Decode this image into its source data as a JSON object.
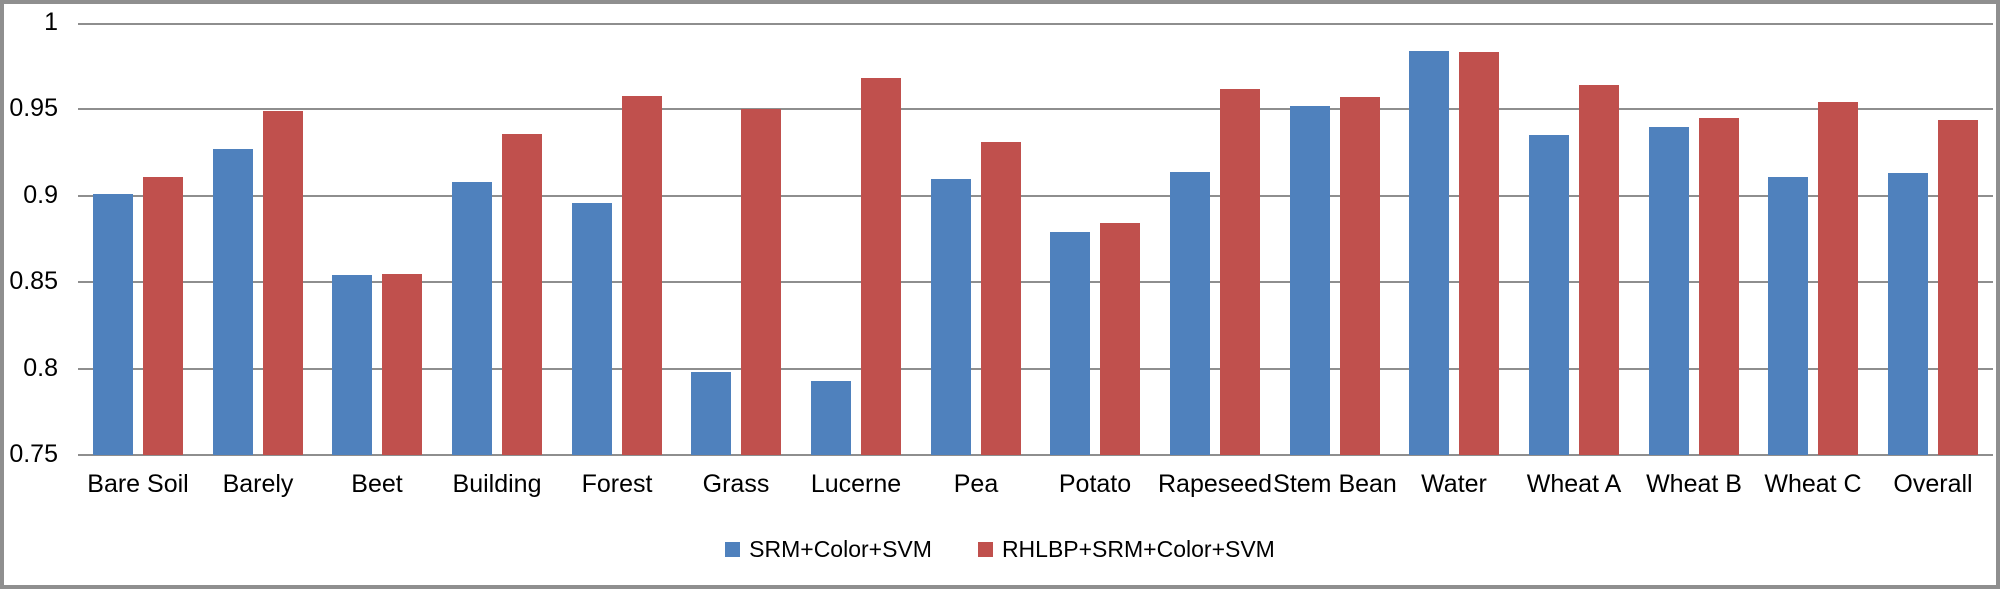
{
  "chart_data": {
    "type": "bar",
    "title": "",
    "xlabel": "",
    "ylabel": "",
    "categories": [
      "Bare Soil",
      "Barely",
      "Beet",
      "Building",
      "Forest",
      "Grass",
      "Lucerne",
      "Pea",
      "Potato",
      "Rapeseed",
      "Stem Bean",
      "Water",
      "Wheat A",
      "Wheat B",
      "Wheat C",
      "Overall"
    ],
    "series": [
      {
        "name": "SRM+Color+SVM",
        "color": "#4F81BD",
        "values": [
          0.901,
          0.927,
          0.854,
          0.908,
          0.896,
          0.798,
          0.793,
          0.91,
          0.879,
          0.914,
          0.952,
          0.984,
          0.935,
          0.94,
          0.911,
          0.913
        ]
      },
      {
        "name": "RHLBP+SRM+Color+SVM",
        "color": "#C0504D",
        "values": [
          0.911,
          0.949,
          0.855,
          0.936,
          0.958,
          0.95,
          0.968,
          0.931,
          0.884,
          0.962,
          0.957,
          0.983,
          0.964,
          0.945,
          0.954,
          0.944
        ]
      }
    ],
    "ylim": [
      0.75,
      1.0
    ],
    "ytick_step": 0.05,
    "ytick_labels": [
      "1",
      "0.95",
      "0.9",
      "0.85",
      "0.8",
      "0.75"
    ],
    "grid": true,
    "gridline_color": "#8E8E8E",
    "legend_position": "bottom-center"
  }
}
